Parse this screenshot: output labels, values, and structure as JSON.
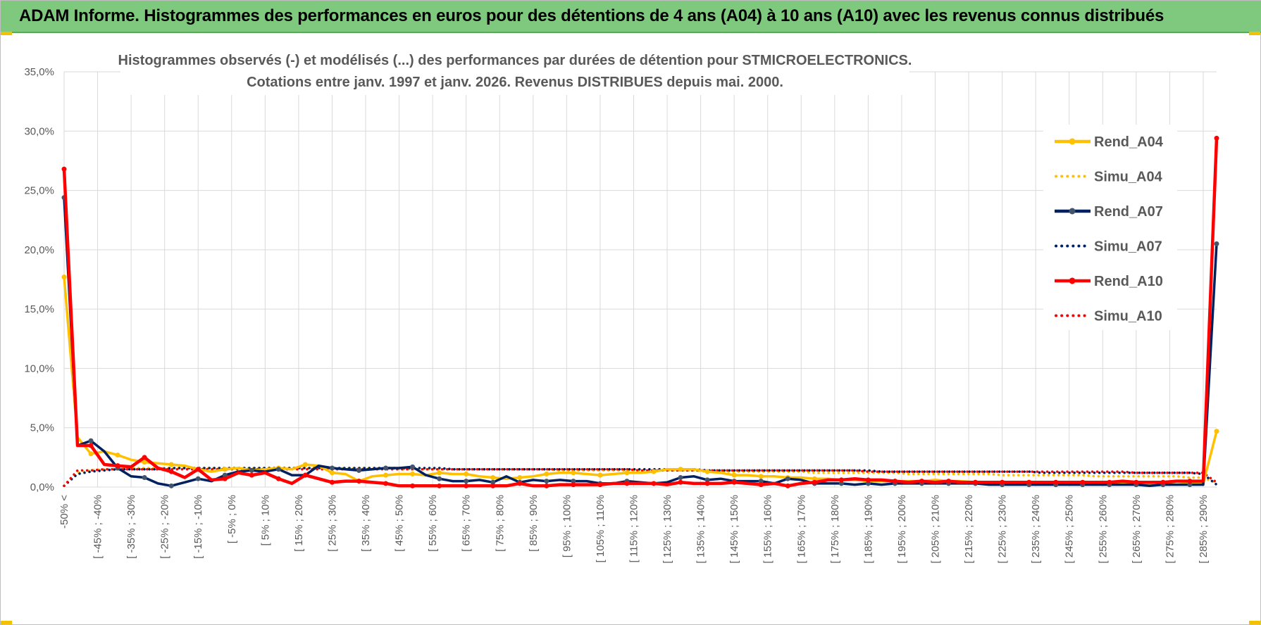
{
  "banner": {
    "title": "ADAM Informe. Histogrammes des performances en euros pour des détentions de 4 ans (A04) à 10 ans (A10) avec les revenus connus distribués"
  },
  "chart_data": {
    "type": "line",
    "title": [
      "Histogrammes observés (-) et modélisés (...) des performances par durées de détention pour STMICROELECTRONICS.",
      "Cotations entre janv. 1997 et janv. 2026. Revenus DISTRIBUES depuis mai. 2000."
    ],
    "ylim": [
      0,
      35
    ],
    "yticks": [
      "0,0%",
      "5,0%",
      "10,0%",
      "15,0%",
      "20,0%",
      "25,0%",
      "30,0%",
      "35,0%"
    ],
    "grid": true,
    "legend_position": "right",
    "x_labels": [
      "-50% <",
      "[ -45% ; -40%",
      "[ -35% ; -30%",
      "[ -25% ; -20%",
      "[ -15% ; -10%",
      "[ -5% ; 0%",
      "[ 5% ; 10%",
      "[ 15% ; 20%",
      "[ 25% ; 30%",
      "[ 35% ; 40%",
      "[ 45% ; 50%",
      "[ 55% ; 60%",
      "[ 65% ; 70%",
      "[ 75% ; 80%",
      "[ 85% ; 90%",
      "[ 95% ; 100%",
      "[ 105% ; 110%",
      "[ 115% ; 120%",
      "[ 125% ; 130%",
      "[ 135% ; 140%",
      "[ 145% ; 150%",
      "[ 155% ; 160%",
      "[ 165% ; 170%",
      "[ 175% ; 180%",
      "[ 185% ; 190%",
      "[ 195% ; 200%",
      "[ 205% ; 210%",
      "[ 215% ; 220%",
      "[ 225% ; 230%",
      "[ 235% ; 240%",
      "[ 245% ; 250%",
      "[ 255% ; 260%",
      "[ 265% ; 270%",
      "[ 275% ; 280%",
      "[ 285% ; 290%"
    ],
    "series": [
      {
        "name": "Rend_A04",
        "color": "#ffc000",
        "style": "solid",
        "values": [
          17.7,
          4.2,
          2.8,
          3.0,
          2.7,
          2.3,
          2.1,
          2.0,
          1.9,
          1.8,
          1.5,
          1.3,
          1.5,
          1.6,
          1.4,
          1.5,
          1.6,
          1.5,
          1.9,
          1.8,
          1.2,
          1.1,
          0.5,
          0.9,
          1.0,
          1.1,
          1.1,
          1.0,
          1.2,
          1.1,
          1.1,
          0.9,
          0.8,
          0.7,
          0.8,
          0.9,
          1.1,
          1.2,
          1.2,
          1.1,
          1.0,
          1.1,
          1.2,
          1.2,
          1.3,
          1.5,
          1.5,
          1.5,
          1.3,
          1.2,
          1.0,
          1.0,
          0.9,
          0.9,
          0.8,
          0.8,
          0.7,
          0.7,
          0.6,
          0.6,
          0.5,
          0.5,
          0.5,
          0.5,
          0.5,
          0.6,
          0.5,
          0.5,
          0.4,
          0.4,
          0.4,
          0.4,
          0.4,
          0.4,
          0.4,
          0.3,
          0.3,
          0.3,
          0.3,
          0.3,
          0.3,
          0.3,
          0.3,
          0.2,
          0.3,
          0.3,
          4.7
        ]
      },
      {
        "name": "Simu_A04",
        "color": "#ffc000",
        "style": "dotted",
        "values": [
          0.1,
          1.2,
          1.4,
          1.5,
          1.5,
          1.6,
          1.6,
          1.6,
          1.6,
          1.6,
          1.6,
          1.6,
          1.6,
          1.6,
          1.6,
          1.6,
          1.6,
          1.6,
          1.6,
          1.6,
          1.6,
          1.6,
          1.6,
          1.6,
          1.6,
          1.5,
          1.5,
          1.5,
          1.5,
          1.5,
          1.5,
          1.5,
          1.5,
          1.5,
          1.5,
          1.5,
          1.5,
          1.4,
          1.4,
          1.4,
          1.4,
          1.4,
          1.4,
          1.4,
          1.4,
          1.4,
          1.4,
          1.4,
          1.3,
          1.3,
          1.3,
          1.3,
          1.3,
          1.3,
          1.3,
          1.3,
          1.2,
          1.2,
          1.2,
          1.2,
          1.2,
          1.2,
          1.2,
          1.1,
          1.1,
          1.1,
          1.1,
          1.1,
          1.1,
          1.1,
          1.0,
          1.0,
          1.0,
          1.0,
          1.0,
          1.0,
          1.0,
          0.9,
          0.9,
          0.9,
          0.9,
          0.9,
          0.9,
          0.9,
          0.8,
          0.8,
          0.3
        ]
      },
      {
        "name": "Rend_A07",
        "color": "#002060",
        "style": "solid",
        "values": [
          24.4,
          3.5,
          3.9,
          3.0,
          1.6,
          0.9,
          0.8,
          0.3,
          0.1,
          0.4,
          0.7,
          0.5,
          1.0,
          1.3,
          1.4,
          1.3,
          1.5,
          1.0,
          1.0,
          1.8,
          1.6,
          1.5,
          1.4,
          1.5,
          1.6,
          1.6,
          1.7,
          1.0,
          0.7,
          0.5,
          0.5,
          0.6,
          0.4,
          0.9,
          0.4,
          0.6,
          0.5,
          0.6,
          0.5,
          0.5,
          0.3,
          0.3,
          0.5,
          0.4,
          0.3,
          0.4,
          0.8,
          0.9,
          0.6,
          0.7,
          0.5,
          0.5,
          0.5,
          0.3,
          0.7,
          0.6,
          0.3,
          0.3,
          0.3,
          0.2,
          0.3,
          0.2,
          0.3,
          0.3,
          0.3,
          0.3,
          0.3,
          0.3,
          0.3,
          0.2,
          0.2,
          0.2,
          0.2,
          0.2,
          0.2,
          0.2,
          0.2,
          0.2,
          0.2,
          0.2,
          0.2,
          0.1,
          0.2,
          0.2,
          0.2,
          0.2,
          20.5
        ]
      },
      {
        "name": "Simu_A07",
        "color": "#002060",
        "style": "dotted",
        "values": [
          0.1,
          1.1,
          1.3,
          1.4,
          1.5,
          1.5,
          1.5,
          1.5,
          1.6,
          1.6,
          1.6,
          1.6,
          1.6,
          1.6,
          1.6,
          1.6,
          1.6,
          1.6,
          1.6,
          1.6,
          1.6,
          1.6,
          1.6,
          1.6,
          1.6,
          1.6,
          1.6,
          1.6,
          1.6,
          1.5,
          1.5,
          1.5,
          1.5,
          1.5,
          1.5,
          1.5,
          1.5,
          1.5,
          1.5,
          1.5,
          1.5,
          1.5,
          1.5,
          1.5,
          1.5,
          1.5,
          1.5,
          1.5,
          1.4,
          1.4,
          1.4,
          1.4,
          1.4,
          1.4,
          1.4,
          1.4,
          1.4,
          1.4,
          1.4,
          1.4,
          1.4,
          1.3,
          1.3,
          1.3,
          1.3,
          1.3,
          1.3,
          1.3,
          1.3,
          1.3,
          1.3,
          1.3,
          1.3,
          1.2,
          1.2,
          1.2,
          1.2,
          1.2,
          1.2,
          1.2,
          1.2,
          1.2,
          1.2,
          1.2,
          1.2,
          1.1,
          0.2
        ]
      },
      {
        "name": "Rend_A10",
        "color": "#ff0000",
        "style": "solid",
        "values": [
          26.8,
          3.5,
          3.5,
          1.9,
          1.8,
          1.7,
          2.5,
          1.6,
          1.3,
          0.8,
          1.5,
          0.6,
          0.7,
          1.2,
          1.0,
          1.2,
          0.7,
          0.3,
          1.0,
          0.7,
          0.4,
          0.5,
          0.5,
          0.4,
          0.3,
          0.1,
          0.1,
          0.1,
          0.1,
          0.1,
          0.1,
          0.1,
          0.1,
          0.1,
          0.3,
          0.1,
          0.1,
          0.2,
          0.2,
          0.2,
          0.2,
          0.3,
          0.3,
          0.3,
          0.3,
          0.2,
          0.4,
          0.3,
          0.3,
          0.3,
          0.4,
          0.3,
          0.2,
          0.3,
          0.1,
          0.3,
          0.4,
          0.6,
          0.6,
          0.7,
          0.6,
          0.6,
          0.5,
          0.4,
          0.5,
          0.4,
          0.5,
          0.4,
          0.4,
          0.4,
          0.4,
          0.4,
          0.4,
          0.4,
          0.4,
          0.4,
          0.4,
          0.4,
          0.4,
          0.5,
          0.4,
          0.4,
          0.4,
          0.5,
          0.5,
          0.5,
          29.4
        ]
      },
      {
        "name": "Simu_A10",
        "color": "#ff0000",
        "style": "dotted",
        "values": [
          0.1,
          1.4,
          1.4,
          1.5,
          1.5,
          1.5,
          1.5,
          1.5,
          1.5,
          1.5,
          1.5,
          1.5,
          1.5,
          1.5,
          1.5,
          1.5,
          1.5,
          1.5,
          1.5,
          1.5,
          1.5,
          1.5,
          1.5,
          1.5,
          1.5,
          1.5,
          1.5,
          1.5,
          1.5,
          1.5,
          1.5,
          1.5,
          1.5,
          1.5,
          1.5,
          1.5,
          1.5,
          1.5,
          1.5,
          1.5,
          1.5,
          1.5,
          1.5,
          1.4,
          1.4,
          1.4,
          1.4,
          1.4,
          1.4,
          1.4,
          1.4,
          1.4,
          1.4,
          1.4,
          1.4,
          1.4,
          1.4,
          1.4,
          1.4,
          1.4,
          1.3,
          1.3,
          1.3,
          1.3,
          1.3,
          1.3,
          1.3,
          1.3,
          1.3,
          1.3,
          1.3,
          1.3,
          1.3,
          1.3,
          1.3,
          1.3,
          1.3,
          1.3,
          1.3,
          1.3,
          1.2,
          1.2,
          1.2,
          1.2,
          1.2,
          1.2,
          0.4
        ]
      }
    ]
  }
}
